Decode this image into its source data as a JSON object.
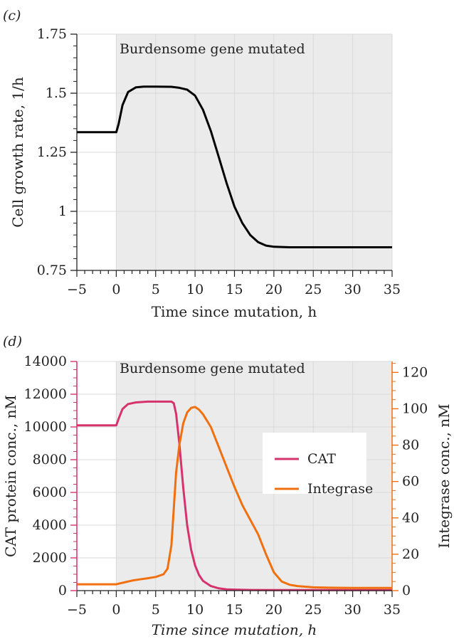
{
  "chart_data": [
    {
      "panel_label": "(c)",
      "type": "line",
      "annotation": "Burdensome gene mutated",
      "shaded_region_x": [
        0,
        35
      ],
      "xlabel": "Time since mutation, h",
      "ylabel": "Cell growth rate, 1/h",
      "xlim": [
        -5,
        35
      ],
      "ylim": [
        0.75,
        1.75
      ],
      "xticks": [
        "−5",
        "0",
        "5",
        "10",
        "15",
        "20",
        "25",
        "30",
        "35"
      ],
      "yticks": [
        "0.75",
        "1",
        "1.25",
        "1.5",
        "1.75"
      ],
      "grid": true,
      "colors": {
        "line": "#000000",
        "shade": "#ebebeb",
        "grid": "#ffffff"
      },
      "series": [
        {
          "name": "growth-rate",
          "x": [
            -5,
            0,
            0.3,
            0.8,
            1.5,
            2.5,
            3.5,
            5,
            7,
            8,
            9,
            10,
            11,
            12,
            13,
            14,
            15,
            16,
            17,
            18,
            19,
            20,
            22,
            25,
            30,
            35
          ],
          "values": [
            1.335,
            1.335,
            1.37,
            1.45,
            1.505,
            1.525,
            1.528,
            1.528,
            1.527,
            1.523,
            1.515,
            1.49,
            1.43,
            1.34,
            1.23,
            1.12,
            1.02,
            0.95,
            0.9,
            0.87,
            0.855,
            0.85,
            0.848,
            0.848,
            0.848,
            0.848
          ]
        }
      ]
    },
    {
      "panel_label": "(d)",
      "type": "line",
      "annotation": "Burdensome gene mutated",
      "shaded_region_x": [
        0,
        35
      ],
      "xlabel": "Time since mutation, h",
      "ylabel": "CAT protein conc., nM",
      "ylabel_right": "Integrase conc., nM",
      "xlim": [
        -5,
        35
      ],
      "ylim": [
        0,
        14000
      ],
      "ylim_right": [
        0,
        126
      ],
      "xticks": [
        "−5",
        "0",
        "5",
        "10",
        "15",
        "20",
        "25",
        "30",
        "35"
      ],
      "yticks": [
        "0",
        "2000",
        "4000",
        "6000",
        "8000",
        "10000",
        "12000",
        "14000"
      ],
      "yticks_right": [
        "0",
        "20",
        "40",
        "60",
        "80",
        "100",
        "120"
      ],
      "legend": {
        "position": "center-right",
        "entries": [
          "CAT",
          "Integrase"
        ]
      },
      "grid": true,
      "colors": {
        "CAT": "#d6336c",
        "Integrase": "#f07010",
        "shade": "#ebebeb",
        "grid": "#ffffff"
      },
      "series": [
        {
          "name": "CAT",
          "axis": "left",
          "x": [
            -5,
            0,
            0.3,
            0.8,
            1.5,
            2.5,
            4,
            5,
            6,
            7,
            7.3,
            7.6,
            8,
            8.5,
            9,
            9.5,
            10,
            10.5,
            11,
            12,
            13,
            14,
            15,
            17,
            20,
            25,
            35
          ],
          "values": [
            10100,
            10100,
            10500,
            11100,
            11400,
            11500,
            11550,
            11550,
            11550,
            11550,
            11450,
            10800,
            9000,
            6300,
            4000,
            2500,
            1550,
            950,
            600,
            280,
            140,
            80,
            60,
            40,
            30,
            30,
            30
          ]
        },
        {
          "name": "Integrase",
          "axis": "right",
          "x": [
            -5,
            0,
            1,
            2,
            3,
            4,
            5,
            6,
            6.5,
            7,
            7.3,
            7.6,
            8,
            8.5,
            9,
            9.5,
            10,
            10.5,
            11,
            12,
            13,
            14,
            15,
            16,
            17,
            18,
            19,
            20,
            21,
            22,
            23,
            25,
            27,
            30,
            35
          ],
          "values": [
            3.5,
            3.5,
            4.5,
            5.5,
            6.2,
            6.8,
            7.5,
            9,
            12,
            25,
            45,
            65,
            80,
            92,
            98,
            100.5,
            101,
            99.5,
            97,
            90,
            79,
            68,
            57,
            47,
            39,
            31,
            20,
            10,
            5,
            3.2,
            2.5,
            1.8,
            1.6,
            1.5,
            1.5
          ]
        }
      ]
    }
  ]
}
